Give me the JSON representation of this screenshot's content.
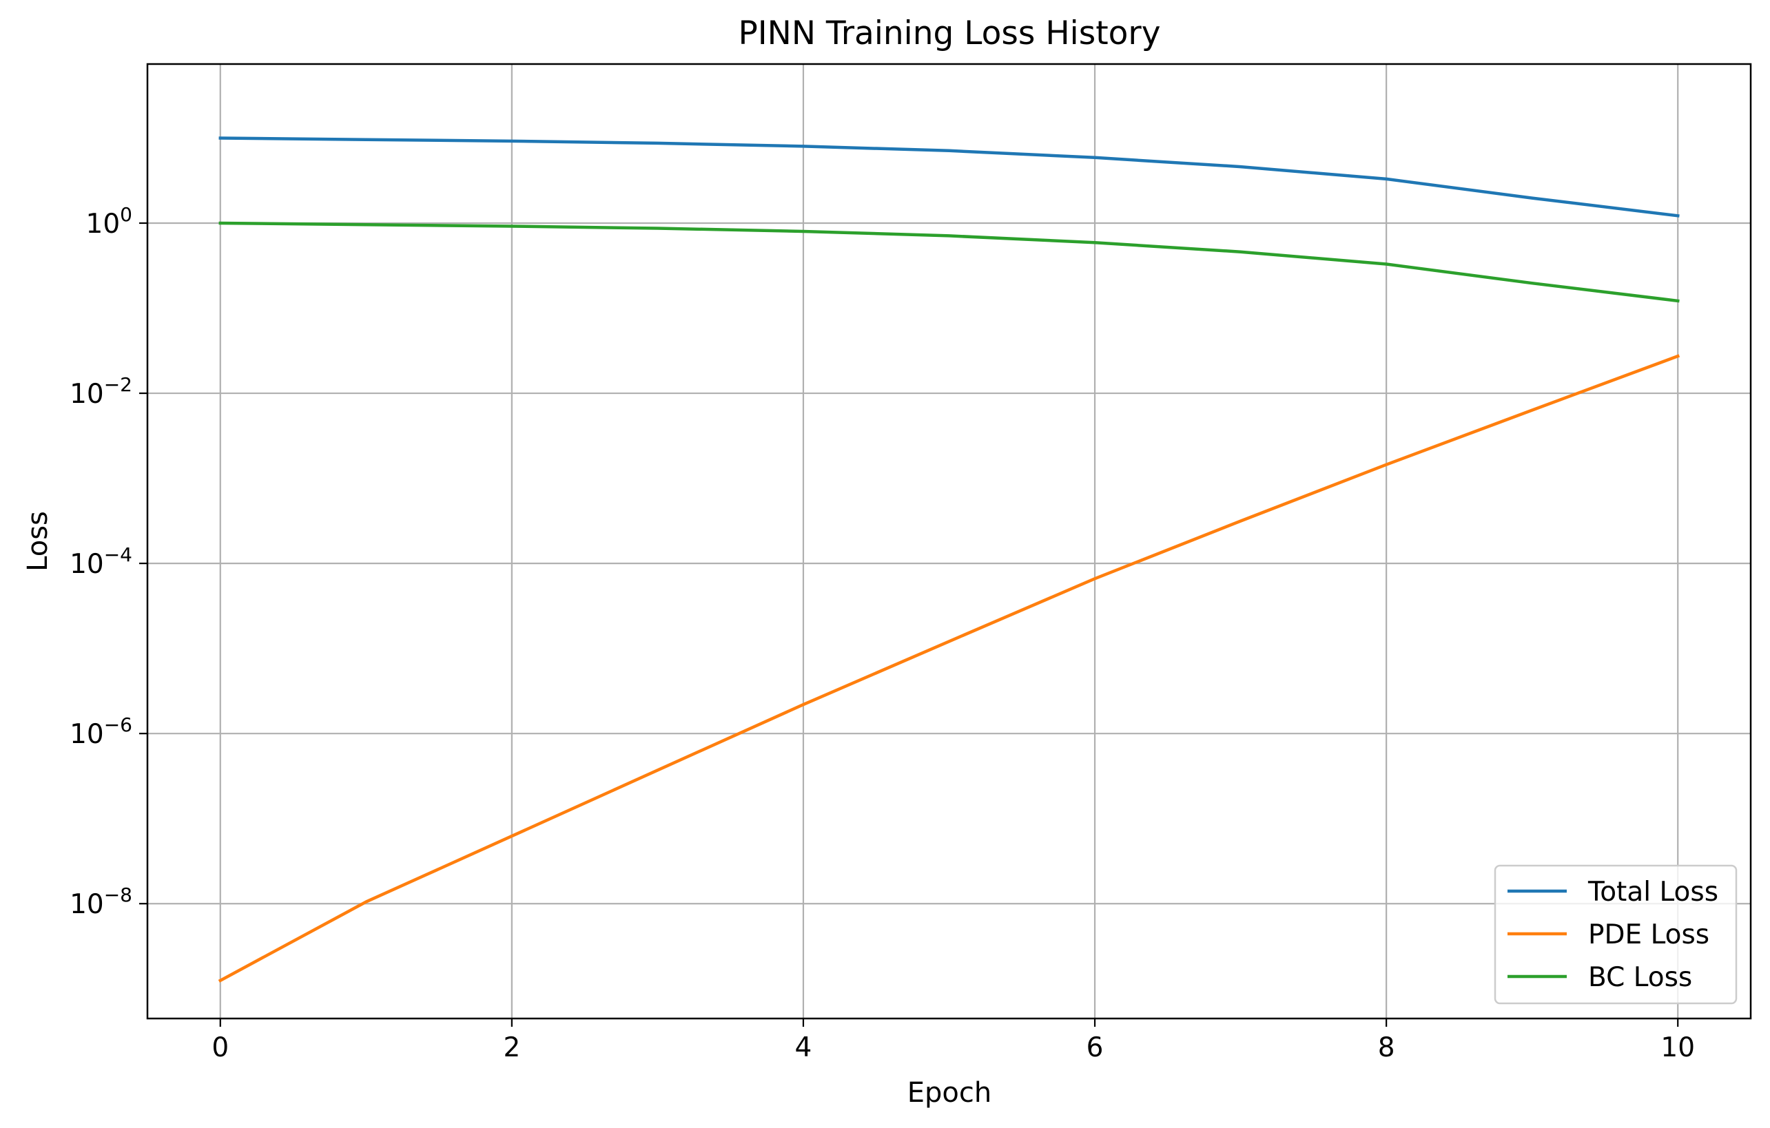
{
  "chart_data": {
    "type": "line",
    "title": "PINN Training Loss History",
    "xlabel": "Epoch",
    "ylabel": "Loss",
    "yscale": "log",
    "grid": true,
    "legend_position": "lower-right",
    "xlim": [
      -0.5,
      10.5
    ],
    "x_ticks": [
      0,
      2,
      4,
      6,
      8,
      10
    ],
    "x_tick_labels": [
      "0",
      "2",
      "4",
      "6",
      "8",
      "10"
    ],
    "y_ticks": [
      1,
      0.01,
      0.0001,
      1e-06,
      1e-08
    ],
    "y_tick_labels": [
      {
        "base": "10",
        "exp": "0"
      },
      {
        "base": "10",
        "exp": "−2"
      },
      {
        "base": "10",
        "exp": "−4"
      },
      {
        "base": "10",
        "exp": "−6"
      },
      {
        "base": "10",
        "exp": "−8"
      }
    ],
    "x": [
      0,
      1,
      2,
      3,
      4,
      5,
      6,
      7,
      8,
      9,
      10
    ],
    "series": [
      {
        "name": "Total Loss",
        "color": "#1f77b4",
        "values": [
          10.0,
          9.6,
          9.2,
          8.7,
          8.0,
          7.1,
          5.9,
          4.6,
          3.3,
          1.97,
          1.22
        ]
      },
      {
        "name": "PDE Loss",
        "color": "#ff7f0e",
        "values": [
          1.25e-09,
          1.05e-08,
          6.23e-08,
          3.71e-07,
          2.19e-06,
          1.21e-05,
          6.61e-05,
          0.000315,
          0.00145,
          0.00633,
          0.0273
        ]
      },
      {
        "name": "BC Loss",
        "color": "#2ca02c",
        "values": [
          1.0,
          0.96,
          0.92,
          0.87,
          0.8,
          0.71,
          0.59,
          0.46,
          0.33,
          0.197,
          0.122
        ]
      }
    ]
  }
}
